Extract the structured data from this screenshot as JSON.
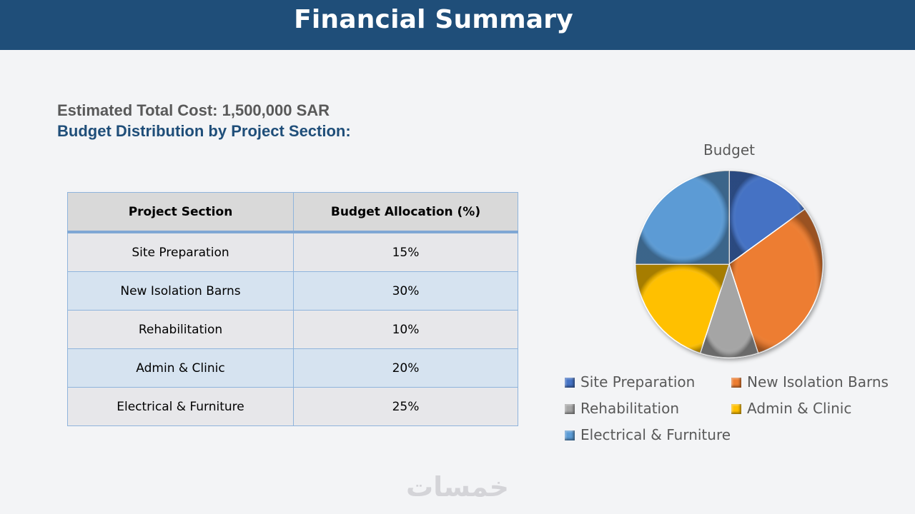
{
  "header": {
    "title": "Financial Summary"
  },
  "summary": {
    "cost_label": "Estimated Total Cost: 1,500,000 SAR",
    "distribution_label": "Budget Distribution by Project Section:"
  },
  "table": {
    "headers": [
      "Project Section",
      "Budget Allocation (%)"
    ],
    "rows": [
      {
        "section": "Site Preparation",
        "allocation": "15%"
      },
      {
        "section": "New Isolation Barns",
        "allocation": "30%"
      },
      {
        "section": "Rehabilitation",
        "allocation": "10%"
      },
      {
        "section": "Admin & Clinic",
        "allocation": "20%"
      },
      {
        "section": "Electrical & Furniture",
        "allocation": "25%"
      }
    ]
  },
  "chart_data": {
    "type": "pie",
    "title": "Budget",
    "categories": [
      "Site Preparation",
      "New Isolation Barns",
      "Rehabilitation",
      "Admin & Clinic",
      "Electrical & Furniture"
    ],
    "values": [
      15,
      30,
      10,
      20,
      25
    ],
    "colors": [
      "#4472c4",
      "#ed7d31",
      "#a5a5a5",
      "#ffc000",
      "#5b9bd5"
    ],
    "legend_position": "bottom"
  },
  "watermark": {
    "text": "خمسات"
  }
}
